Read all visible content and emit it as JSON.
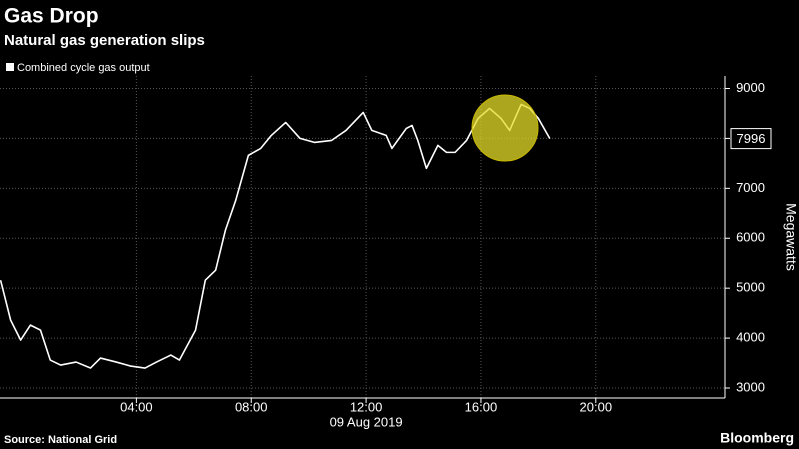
{
  "chart_data": {
    "type": "line",
    "title": "Gas Drop",
    "subtitle": "Natural gas generation slips",
    "date_label": "09 Aug 2019",
    "y_label": "Megawatts",
    "source": "Source: National Grid",
    "brand": "Bloomberg",
    "x": [
      -0.73,
      -0.38,
      -0.03,
      0.31,
      0.66,
      1.0,
      1.36,
      1.9,
      2.4,
      2.75,
      3.3,
      3.8,
      4.3,
      4.7,
      5.2,
      5.5,
      6.06,
      6.4,
      6.76,
      7.1,
      7.46,
      7.9,
      8.33,
      8.7,
      9.2,
      9.7,
      10.2,
      10.8,
      11.3,
      11.9,
      12.2,
      12.7,
      12.9,
      13.4,
      13.6,
      13.8,
      14.1,
      14.5,
      14.8,
      15.1,
      15.5,
      15.9,
      16.3,
      16.7,
      17.0,
      17.4,
      17.7,
      18.0,
      18.4
    ],
    "series": [
      {
        "name": "Combined cycle gas output",
        "color": "#ffffff",
        "values": [
          5160,
          4360,
          3960,
          4260,
          4160,
          3560,
          3460,
          3520,
          3400,
          3600,
          3520,
          3440,
          3400,
          3520,
          3660,
          3560,
          4160,
          5160,
          5360,
          6160,
          6760,
          7660,
          7800,
          8060,
          8320,
          8000,
          7920,
          7960,
          8160,
          8520,
          8160,
          8060,
          7800,
          8200,
          8260,
          7960,
          7400,
          7860,
          7720,
          7720,
          7960,
          8400,
          8600,
          8400,
          8160,
          8680,
          8600,
          8400,
          7996
        ]
      }
    ],
    "xlim": [
      -0.75,
      24.5
    ],
    "xticks": [
      {
        "value": 4,
        "label": "04:00"
      },
      {
        "value": 8,
        "label": "08:00"
      },
      {
        "value": 12,
        "label": "12:00"
      },
      {
        "value": 16,
        "label": "16:00"
      },
      {
        "value": 20,
        "label": "20:00"
      }
    ],
    "ylim": [
      2800,
      9250
    ],
    "yticks": [
      3000,
      4000,
      5000,
      6000,
      7000,
      8000,
      9000
    ],
    "grid": true
  }
}
